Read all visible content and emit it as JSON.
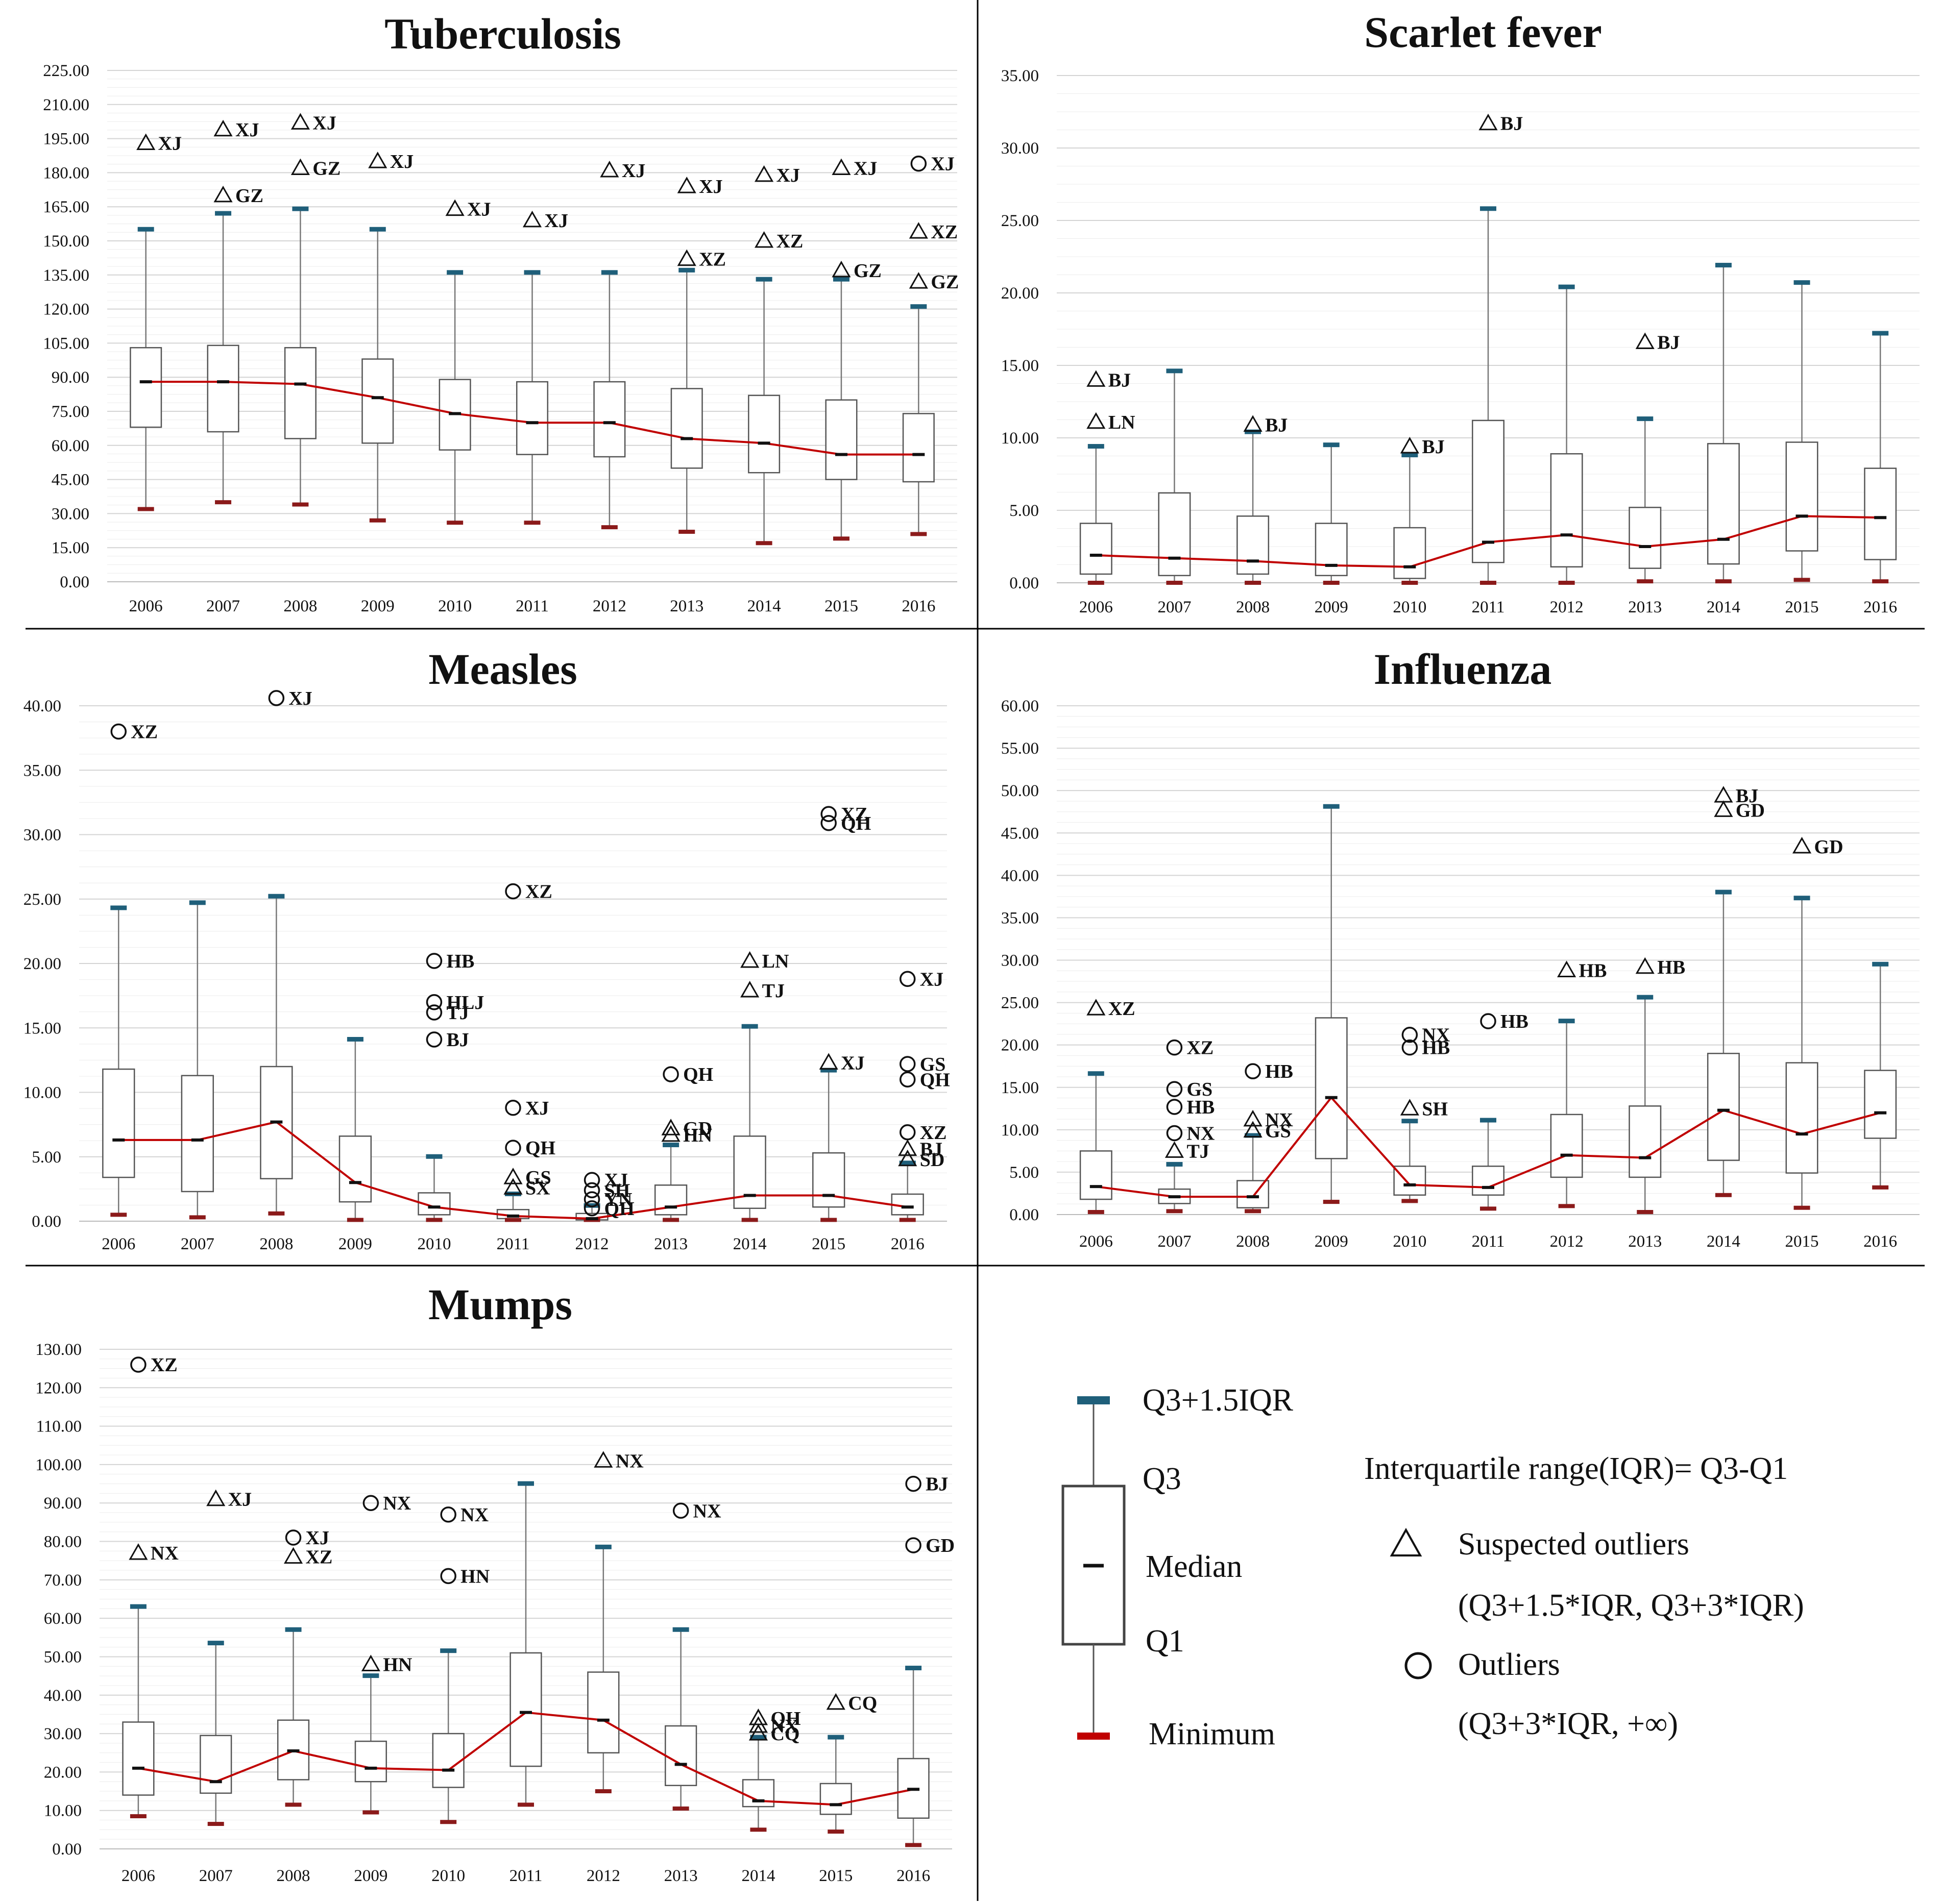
{
  "legend": {
    "upper_whisker": "Q3+1.5IQR",
    "q3": "Q3",
    "median": "Median",
    "q1": "Q1",
    "minimum": "Minimum",
    "iqr_def": "Interquartile range(IQR)= Q3-Q1",
    "suspected": "Suspected outliers",
    "suspected_range": "(Q3+1.5*IQR, Q3+3*IQR)",
    "outliers": "Outliers",
    "outliers_range": "(Q3+3*IQR, +∞)"
  },
  "colors": {
    "box": "#555555",
    "whisker": "#777777",
    "median_line": "#c00000",
    "cap_top": "#1f5f7a",
    "cap_bottom": "#8b1a1a",
    "red_label": "#e00000"
  },
  "chart_data": [
    {
      "type": "box",
      "title": "Tuberculosis",
      "categories": [
        "2006",
        "2007",
        "2008",
        "2009",
        "2010",
        "2011",
        "2012",
        "2013",
        "2014",
        "2015",
        "2016"
      ],
      "ylim": [
        0,
        225
      ],
      "ytick_step": 15,
      "yticks": [
        "0.00",
        "15.00",
        "30.00",
        "45.00",
        "60.00",
        "75.00",
        "90.00",
        "105.00",
        "120.00",
        "135.00",
        "150.00",
        "165.00",
        "180.00",
        "195.00",
        "210.00",
        "225.00"
      ],
      "min": [
        32,
        35,
        34,
        27,
        26,
        26,
        24,
        22,
        17,
        19,
        21
      ],
      "q1": [
        68,
        66,
        63,
        61,
        58,
        56,
        55,
        50,
        48,
        45,
        44
      ],
      "median": [
        88,
        88,
        87,
        81,
        74,
        70,
        70,
        63,
        61,
        56,
        56
      ],
      "q3": [
        103,
        104,
        103,
        98,
        89,
        88,
        88,
        85,
        82,
        80,
        74
      ],
      "upper": [
        155,
        162,
        164,
        155,
        136,
        136,
        136,
        137,
        133,
        133,
        121
      ],
      "outliers": [
        {
          "cat": 0,
          "v": 193,
          "label": "XJ",
          "shape": "triangle"
        },
        {
          "cat": 1,
          "v": 199,
          "label": "XJ",
          "shape": "triangle"
        },
        {
          "cat": 1,
          "v": 170,
          "label": "GZ",
          "shape": "triangle"
        },
        {
          "cat": 2,
          "v": 202,
          "label": "XJ",
          "shape": "triangle"
        },
        {
          "cat": 2,
          "v": 182,
          "label": "GZ",
          "shape": "triangle"
        },
        {
          "cat": 3,
          "v": 185,
          "label": "XJ",
          "shape": "triangle"
        },
        {
          "cat": 4,
          "v": 164,
          "label": "XJ",
          "shape": "triangle"
        },
        {
          "cat": 5,
          "v": 159,
          "label": "XJ",
          "shape": "triangle"
        },
        {
          "cat": 6,
          "v": 181,
          "label": "XJ",
          "shape": "triangle"
        },
        {
          "cat": 7,
          "v": 174,
          "label": "XJ",
          "shape": "triangle"
        },
        {
          "cat": 7,
          "v": 142,
          "label": "XZ",
          "shape": "triangle"
        },
        {
          "cat": 8,
          "v": 179,
          "label": "XJ",
          "shape": "triangle"
        },
        {
          "cat": 8,
          "v": 150,
          "label": "XZ",
          "shape": "triangle"
        },
        {
          "cat": 9,
          "v": 182,
          "label": "XJ",
          "shape": "triangle"
        },
        {
          "cat": 9,
          "v": 137,
          "label": "GZ",
          "shape": "triangle"
        },
        {
          "cat": 10,
          "v": 184,
          "label": "XJ",
          "shape": "circle"
        },
        {
          "cat": 10,
          "v": 154,
          "label": "XZ",
          "shape": "triangle"
        },
        {
          "cat": 10,
          "v": 132,
          "label": "GZ",
          "shape": "triangle"
        }
      ]
    },
    {
      "type": "box",
      "title": "Scarlet fever",
      "categories": [
        "2006",
        "2007",
        "2008",
        "2009",
        "2010",
        "2011",
        "2012",
        "2013",
        "2014",
        "2015",
        "2016"
      ],
      "ylim": [
        0,
        35
      ],
      "ytick_step": 5,
      "yticks": [
        "0.00",
        "5.00",
        "10.00",
        "15.00",
        "20.00",
        "25.00",
        "30.00",
        "35.00"
      ],
      "min": [
        0,
        0,
        0,
        0,
        0,
        0,
        0,
        0.1,
        0.1,
        0.2,
        0.1
      ],
      "q1": [
        0.6,
        0.5,
        0.6,
        0.5,
        0.3,
        1.4,
        1.1,
        1.0,
        1.3,
        2.2,
        1.6
      ],
      "median": [
        1.9,
        1.7,
        1.5,
        1.2,
        1.1,
        2.8,
        3.3,
        2.5,
        3.0,
        4.6,
        4.5
      ],
      "q3": [
        4.1,
        6.2,
        4.6,
        4.1,
        3.8,
        11.2,
        8.9,
        5.2,
        9.6,
        9.7,
        7.9
      ],
      "upper": [
        9.4,
        14.6,
        10.4,
        9.5,
        8.8,
        25.8,
        20.4,
        11.3,
        21.9,
        20.7,
        17.2
      ],
      "outliers": [
        {
          "cat": 0,
          "v": 14.0,
          "label": "BJ",
          "shape": "triangle"
        },
        {
          "cat": 0,
          "v": 11.1,
          "label": "LN",
          "shape": "triangle"
        },
        {
          "cat": 2,
          "v": 10.9,
          "label": "BJ",
          "shape": "triangle"
        },
        {
          "cat": 4,
          "v": 9.4,
          "label": "BJ",
          "shape": "triangle"
        },
        {
          "cat": 5,
          "v": 31.7,
          "label": "BJ",
          "shape": "triangle"
        },
        {
          "cat": 7,
          "v": 16.6,
          "label": "BJ",
          "shape": "triangle"
        }
      ]
    },
    {
      "type": "box",
      "title": "Measles",
      "categories": [
        "2006",
        "2007",
        "2008",
        "2009",
        "2010",
        "2011",
        "2012",
        "2013",
        "2014",
        "2015",
        "2016"
      ],
      "ylim": [
        0,
        40
      ],
      "ytick_step": 5,
      "yticks": [
        "0.00",
        "5.00",
        "10.00",
        "15.00",
        "20.00",
        "25.00",
        "30.00",
        "35.00",
        "40.00"
      ],
      "min": [
        0.5,
        0.3,
        0.6,
        0.1,
        0.1,
        0.1,
        0.1,
        0.1,
        0.1,
        0.1,
        0.1
      ],
      "q1": [
        3.4,
        2.3,
        3.3,
        1.5,
        0.5,
        0.2,
        0.1,
        0.5,
        1.0,
        1.1,
        0.5
      ],
      "median": [
        6.3,
        6.3,
        7.7,
        3.0,
        1.1,
        0.4,
        0.2,
        1.1,
        2.0,
        2.0,
        1.1
      ],
      "q3": [
        11.8,
        11.3,
        12.0,
        6.6,
        2.2,
        0.9,
        0.6,
        2.8,
        6.6,
        5.3,
        2.1
      ],
      "upper": [
        24.3,
        24.7,
        25.2,
        14.1,
        5.0,
        2.1,
        1.2,
        5.9,
        15.1,
        11.7,
        4.5
      ],
      "outliers": [
        {
          "cat": 0,
          "v": 38.0,
          "label": "XZ",
          "shape": "circle"
        },
        {
          "cat": 2,
          "v": 40.6,
          "label": "XJ",
          "shape": "circle",
          "red": true
        },
        {
          "cat": 4,
          "v": 20.2,
          "label": "HB",
          "shape": "circle"
        },
        {
          "cat": 4,
          "v": 17.0,
          "label": "HLJ",
          "shape": "circle"
        },
        {
          "cat": 4,
          "v": 16.2,
          "label": "TJ",
          "shape": "circle"
        },
        {
          "cat": 4,
          "v": 14.1,
          "label": "BJ",
          "shape": "circle"
        },
        {
          "cat": 5,
          "v": 25.6,
          "label": "XZ",
          "shape": "circle"
        },
        {
          "cat": 5,
          "v": 8.8,
          "label": "XJ",
          "shape": "circle"
        },
        {
          "cat": 5,
          "v": 5.7,
          "label": "QH",
          "shape": "circle"
        },
        {
          "cat": 5,
          "v": 3.4,
          "label": "GS",
          "shape": "triangle"
        },
        {
          "cat": 5,
          "v": 2.6,
          "label": "SX",
          "shape": "triangle"
        },
        {
          "cat": 6,
          "v": 3.2,
          "label": "XJ",
          "shape": "circle"
        },
        {
          "cat": 6,
          "v": 2.4,
          "label": "SH",
          "shape": "circle"
        },
        {
          "cat": 6,
          "v": 1.7,
          "label": "YN",
          "shape": "circle"
        },
        {
          "cat": 6,
          "v": 1.0,
          "label": "QH",
          "shape": "circle"
        },
        {
          "cat": 7,
          "v": 11.4,
          "label": "QH",
          "shape": "circle"
        },
        {
          "cat": 7,
          "v": 7.2,
          "label": "GD",
          "shape": "triangle"
        },
        {
          "cat": 7,
          "v": 6.7,
          "label": "HN",
          "shape": "triangle"
        },
        {
          "cat": 8,
          "v": 20.2,
          "label": "LN",
          "shape": "triangle"
        },
        {
          "cat": 8,
          "v": 17.9,
          "label": "TJ",
          "shape": "triangle"
        },
        {
          "cat": 9,
          "v": 31.6,
          "label": "XZ",
          "shape": "circle"
        },
        {
          "cat": 9,
          "v": 30.9,
          "label": "QH",
          "shape": "circle"
        },
        {
          "cat": 9,
          "v": 12.3,
          "label": "XJ",
          "shape": "triangle"
        },
        {
          "cat": 10,
          "v": 18.8,
          "label": "XJ",
          "shape": "circle"
        },
        {
          "cat": 10,
          "v": 12.2,
          "label": "GS",
          "shape": "circle"
        },
        {
          "cat": 10,
          "v": 11.0,
          "label": "QH",
          "shape": "circle"
        },
        {
          "cat": 10,
          "v": 6.9,
          "label": "XZ",
          "shape": "circle"
        },
        {
          "cat": 10,
          "v": 5.6,
          "label": "BJ",
          "shape": "triangle"
        },
        {
          "cat": 10,
          "v": 4.8,
          "label": "SD",
          "shape": "triangle"
        }
      ]
    },
    {
      "type": "box",
      "title": "Influenza",
      "categories": [
        "2006",
        "2007",
        "2008",
        "2009",
        "2010",
        "2011",
        "2012",
        "2013",
        "2014",
        "2015",
        "2016"
      ],
      "ylim": [
        0,
        60
      ],
      "ytick_step": 5,
      "yticks": [
        "0.00",
        "5.00",
        "10.00",
        "15.00",
        "20.00",
        "25.00",
        "30.00",
        "35.00",
        "40.00",
        "45.00",
        "50.00",
        "55.00",
        "60.00"
      ],
      "min": [
        0.3,
        0.4,
        0.4,
        1.5,
        1.6,
        0.7,
        1.0,
        0.3,
        2.3,
        0.8,
        3.2
      ],
      "q1": [
        1.8,
        1.3,
        0.8,
        6.6,
        2.3,
        2.3,
        4.4,
        4.4,
        6.4,
        4.9,
        9.0
      ],
      "median": [
        3.3,
        2.1,
        2.1,
        13.8,
        3.5,
        3.2,
        7.0,
        6.7,
        12.3,
        9.5,
        12.0
      ],
      "q3": [
        7.5,
        3.0,
        4.0,
        23.2,
        5.7,
        5.7,
        11.8,
        12.8,
        19.0,
        17.9,
        17.0
      ],
      "upper": [
        16.6,
        5.9,
        9.3,
        48.1,
        11.0,
        11.1,
        22.8,
        25.6,
        38.0,
        37.3,
        29.5
      ],
      "outliers": [
        {
          "cat": 0,
          "v": 24.3,
          "label": "XZ",
          "shape": "triangle"
        },
        {
          "cat": 1,
          "v": 19.7,
          "label": "XZ",
          "shape": "circle"
        },
        {
          "cat": 1,
          "v": 14.8,
          "label": "GS",
          "shape": "circle"
        },
        {
          "cat": 1,
          "v": 12.7,
          "label": "HB",
          "shape": "circle"
        },
        {
          "cat": 1,
          "v": 9.6,
          "label": "NX",
          "shape": "circle"
        },
        {
          "cat": 1,
          "v": 7.5,
          "label": "TJ",
          "shape": "triangle"
        },
        {
          "cat": 2,
          "v": 16.9,
          "label": "HB",
          "shape": "circle"
        },
        {
          "cat": 2,
          "v": 11.2,
          "label": "NX",
          "shape": "triangle"
        },
        {
          "cat": 2,
          "v": 9.9,
          "label": "GS",
          "shape": "triangle"
        },
        {
          "cat": 4,
          "v": 21.2,
          "label": "NX",
          "shape": "circle"
        },
        {
          "cat": 4,
          "v": 19.7,
          "label": "HB",
          "shape": "circle"
        },
        {
          "cat": 4,
          "v": 12.5,
          "label": "SH",
          "shape": "triangle"
        },
        {
          "cat": 5,
          "v": 22.8,
          "label": "HB",
          "shape": "circle"
        },
        {
          "cat": 6,
          "v": 28.8,
          "label": "HB",
          "shape": "triangle"
        },
        {
          "cat": 7,
          "v": 29.2,
          "label": "HB",
          "shape": "triangle"
        },
        {
          "cat": 8,
          "v": 49.4,
          "label": "BJ",
          "shape": "triangle"
        },
        {
          "cat": 8,
          "v": 47.7,
          "label": "GD",
          "shape": "triangle"
        },
        {
          "cat": 9,
          "v": 43.4,
          "label": "GD",
          "shape": "triangle"
        }
      ]
    },
    {
      "type": "box",
      "title": "Mumps",
      "categories": [
        "2006",
        "2007",
        "2008",
        "2009",
        "2010",
        "2011",
        "2012",
        "2013",
        "2014",
        "2015",
        "2016"
      ],
      "ylim": [
        0,
        130
      ],
      "ytick_step": 10,
      "yticks": [
        "0.00",
        "10.00",
        "20.00",
        "30.00",
        "40.00",
        "50.00",
        "60.00",
        "70.00",
        "80.00",
        "90.00",
        "100.00",
        "110.00",
        "120.00",
        "130.00"
      ],
      "min": [
        8.5,
        6.5,
        11.5,
        9.5,
        7.0,
        11.5,
        15.0,
        10.5,
        5.0,
        4.5,
        1.0
      ],
      "q1": [
        14,
        14.5,
        18,
        17.5,
        16,
        21.5,
        25,
        16.5,
        11,
        9,
        8
      ],
      "median": [
        21,
        17.5,
        25.5,
        21,
        20.5,
        35.5,
        33.5,
        22,
        12.5,
        11.5,
        15.5
      ],
      "q3": [
        33,
        29.5,
        33.5,
        28,
        30,
        51,
        46,
        32,
        18,
        17,
        23.5
      ],
      "upper": [
        63,
        53.5,
        57,
        45,
        51.5,
        95,
        78.5,
        57,
        29,
        29,
        47
      ],
      "outliers": [
        {
          "cat": 0,
          "v": 126,
          "label": "XZ",
          "shape": "circle"
        },
        {
          "cat": 0,
          "v": 77,
          "label": "NX",
          "shape": "triangle"
        },
        {
          "cat": 1,
          "v": 91,
          "label": "XJ",
          "shape": "triangle"
        },
        {
          "cat": 2,
          "v": 81,
          "label": "XJ",
          "shape": "circle"
        },
        {
          "cat": 2,
          "v": 76,
          "label": "XZ",
          "shape": "triangle"
        },
        {
          "cat": 3,
          "v": 90,
          "label": "NX",
          "shape": "circle"
        },
        {
          "cat": 3,
          "v": 48,
          "label": "HN",
          "shape": "triangle"
        },
        {
          "cat": 4,
          "v": 87,
          "label": "NX",
          "shape": "circle"
        },
        {
          "cat": 4,
          "v": 71,
          "label": "HN",
          "shape": "circle"
        },
        {
          "cat": 6,
          "v": 101,
          "label": "NX",
          "shape": "triangle"
        },
        {
          "cat": 7,
          "v": 88,
          "label": "NX",
          "shape": "circle"
        },
        {
          "cat": 8,
          "v": 34,
          "label": "QH",
          "shape": "triangle"
        },
        {
          "cat": 8,
          "v": 32,
          "label": "NX",
          "shape": "triangle"
        },
        {
          "cat": 8,
          "v": 30,
          "label": "CQ",
          "shape": "triangle"
        },
        {
          "cat": 9,
          "v": 38,
          "label": "CQ",
          "shape": "triangle"
        },
        {
          "cat": 10,
          "v": 95,
          "label": "BJ",
          "shape": "circle"
        },
        {
          "cat": 10,
          "v": 79,
          "label": "GD",
          "shape": "circle"
        }
      ]
    }
  ]
}
